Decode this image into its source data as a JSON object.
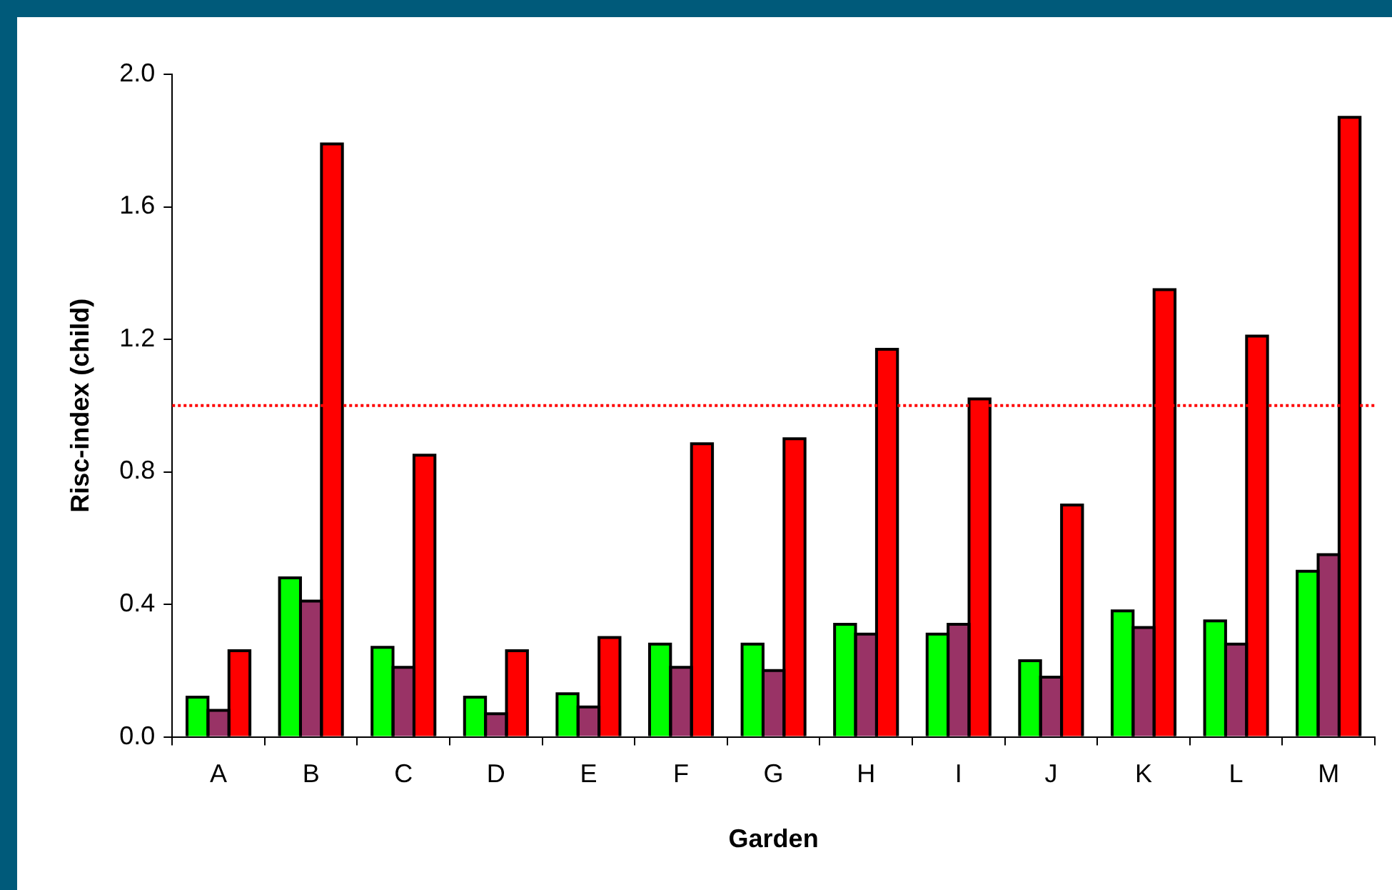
{
  "chart_data": {
    "type": "bar",
    "xlabel": "Garden",
    "ylabel": "Risc-index (child)",
    "categories": [
      "A",
      "B",
      "C",
      "D",
      "E",
      "F",
      "G",
      "H",
      "I",
      "J",
      "K",
      "L",
      "M"
    ],
    "series": [
      {
        "color": "#00ff00",
        "values": [
          0.12,
          0.48,
          0.27,
          0.12,
          0.13,
          0.28,
          0.28,
          0.34,
          0.31,
          0.23,
          0.38,
          0.35,
          0.5
        ]
      },
      {
        "color": "#993366",
        "values": [
          0.08,
          0.41,
          0.21,
          0.07,
          0.09,
          0.21,
          0.2,
          0.31,
          0.34,
          0.18,
          0.33,
          0.28,
          0.55
        ]
      },
      {
        "color": "#ff0000",
        "values": [
          0.26,
          1.79,
          0.85,
          0.26,
          0.3,
          0.885,
          0.9,
          1.17,
          1.02,
          0.7,
          1.35,
          1.21,
          1.87
        ]
      }
    ],
    "ylim": [
      0,
      2
    ],
    "yticks": [
      {
        "value": 0,
        "label": "0.0"
      },
      {
        "value": 0.4,
        "label": "0.4"
      },
      {
        "value": 0.8,
        "label": "0.8"
      },
      {
        "value": 1.2,
        "label": "1.2"
      },
      {
        "value": 1.6,
        "label": "1.6"
      },
      {
        "value": 2,
        "label": "2.0"
      }
    ],
    "grid": false,
    "legend": false,
    "ref_lines": [
      {
        "axis": "y",
        "value": 1,
        "color": "#ff0000",
        "line_style": "dotted"
      }
    ]
  }
}
